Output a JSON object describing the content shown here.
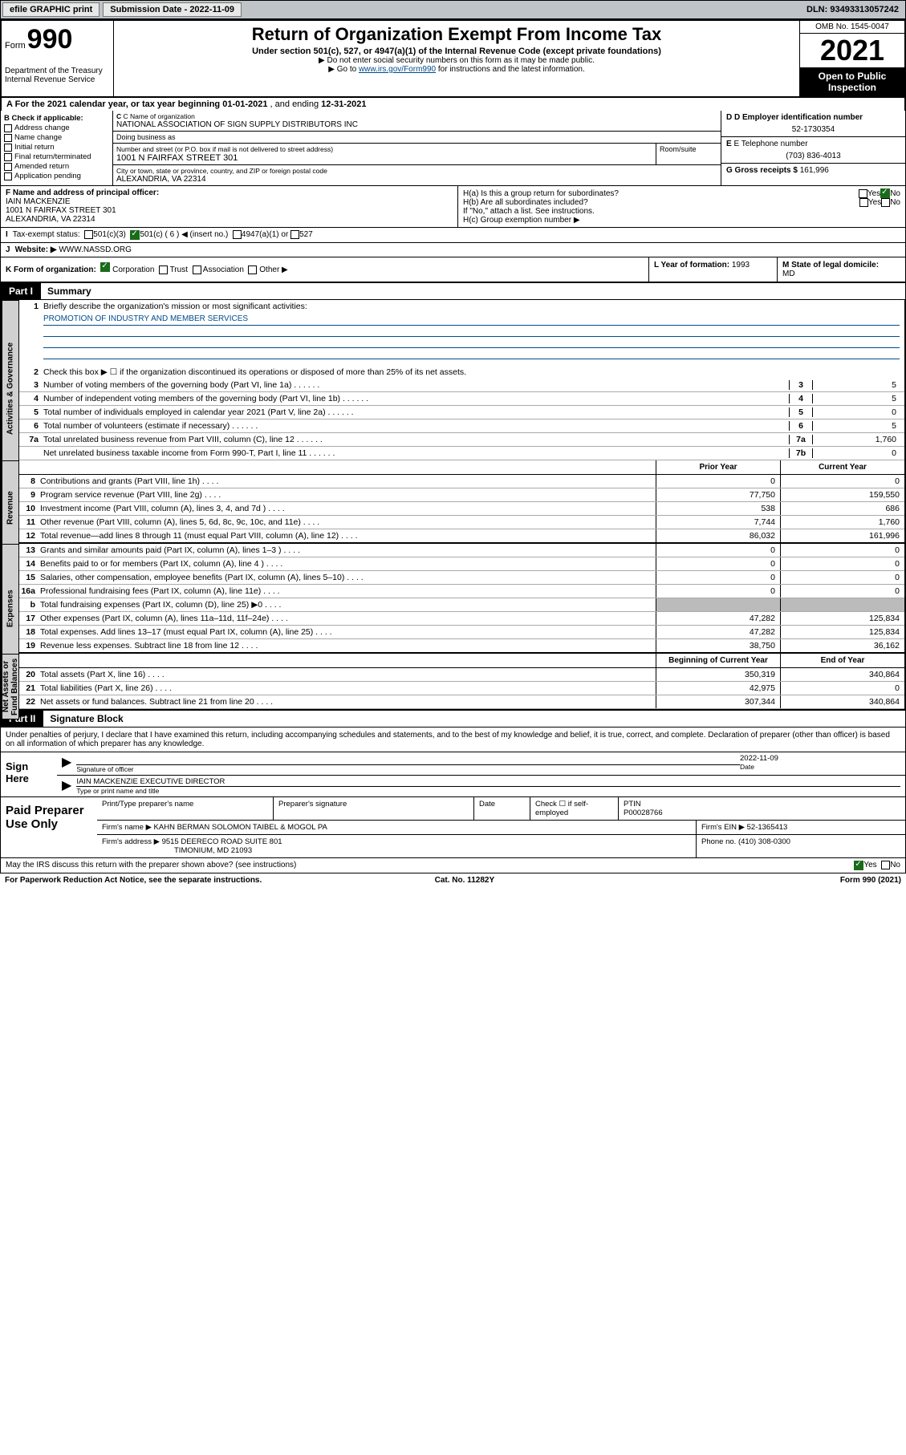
{
  "topbar": {
    "efile": "efile GRAPHIC print",
    "submission_label": "Submission Date - 2022-11-09",
    "dln": "DLN: 93493313057242"
  },
  "header": {
    "form_word": "Form",
    "form_number": "990",
    "dept": "Department of the Treasury",
    "irs": "Internal Revenue Service",
    "title": "Return of Organization Exempt From Income Tax",
    "sub": "Under section 501(c), 527, or 4947(a)(1) of the Internal Revenue Code (except private foundations)",
    "note1": "▶ Do not enter social security numbers on this form as it may be made public.",
    "note2_pre": "▶ Go to ",
    "note2_link": "www.irs.gov/Form990",
    "note2_post": " for instructions and the latest information.",
    "omb": "OMB No. 1545-0047",
    "year": "2021",
    "open": "Open to Public Inspection"
  },
  "taxyear": {
    "text_pre": "A For the 2021 calendar year, or tax year beginning ",
    "begin": "01-01-2021",
    "mid": " , and ending ",
    "end": "12-31-2021"
  },
  "colB": {
    "label": "B Check if applicable:",
    "items": [
      "Address change",
      "Name change",
      "Initial return",
      "Final return/terminated",
      "Amended return",
      "Application pending"
    ]
  },
  "colC": {
    "name_lab": "C Name of organization",
    "name": "NATIONAL ASSOCIATION OF SIGN SUPPLY DISTRIBUTORS INC",
    "dba_lab": "Doing business as",
    "addr_lab": "Number and street (or P.O. box if mail is not delivered to street address)",
    "room_lab": "Room/suite",
    "addr": "1001 N FAIRFAX STREET 301",
    "city_lab": "City or town, state or province, country, and ZIP or foreign postal code",
    "city": "ALEXANDRIA, VA  22314"
  },
  "colD": {
    "ein_lab": "D Employer identification number",
    "ein": "52-1730354",
    "tel_lab": "E Telephone number",
    "tel": "(703) 836-4013",
    "gross_lab": "G Gross receipts $",
    "gross": "161,996"
  },
  "rowF": {
    "lab": "F Name and address of principal officer:",
    "name": "IAIN MACKENZIE",
    "addr1": "1001 N FAIRFAX STREET 301",
    "addr2": "ALEXANDRIA, VA  22314"
  },
  "rowH": {
    "ha": "H(a) Is this a group return for subordinates?",
    "hb": "H(b) Are all subordinates included?",
    "hb_note": "If \"No,\" attach a list. See instructions.",
    "hc": "H(c) Group exemption number ▶",
    "yes": "Yes",
    "no": "No"
  },
  "rowI": {
    "lab": "I",
    "txt": "Tax-exempt status:",
    "o1": "501(c)(3)",
    "o2": "501(c) ( 6 ) ◀ (insert no.)",
    "o3": "4947(a)(1) or",
    "o4": "527"
  },
  "rowJ": {
    "lab": "J",
    "txt": "Website: ▶",
    "val": "WWW.NASSD.ORG"
  },
  "rowK": {
    "lab": "K Form of organization:",
    "o1": "Corporation",
    "o2": "Trust",
    "o3": "Association",
    "o4": "Other ▶",
    "L_lab": "L Year of formation:",
    "L_val": "1993",
    "M_lab": "M State of legal domicile:",
    "M_val": "MD"
  },
  "part1": {
    "label": "Part I",
    "title": "Summary"
  },
  "part2": {
    "label": "Part II",
    "title": "Signature Block"
  },
  "tabs": {
    "gov": "Activities & Governance",
    "rev": "Revenue",
    "exp": "Expenses",
    "net": "Net Assets or Fund Balances"
  },
  "gov": {
    "l1": "Briefly describe the organization's mission or most significant activities:",
    "mission": "PROMOTION OF INDUSTRY AND MEMBER SERVICES",
    "l2": "Check this box ▶ ☐ if the organization discontinued its operations or disposed of more than 25% of its net assets.",
    "rows": [
      {
        "n": "3",
        "t": "Number of voting members of the governing body (Part VI, line 1a)",
        "idx": "3",
        "v": "5"
      },
      {
        "n": "4",
        "t": "Number of independent voting members of the governing body (Part VI, line 1b)",
        "idx": "4",
        "v": "5"
      },
      {
        "n": "5",
        "t": "Total number of individuals employed in calendar year 2021 (Part V, line 2a)",
        "idx": "5",
        "v": "0"
      },
      {
        "n": "6",
        "t": "Total number of volunteers (estimate if necessary)",
        "idx": "6",
        "v": "5"
      },
      {
        "n": "7a",
        "t": "Total unrelated business revenue from Part VIII, column (C), line 12",
        "idx": "7a",
        "v": "1,760"
      },
      {
        "n": "",
        "t": "Net unrelated business taxable income from Form 990-T, Part I, line 11",
        "idx": "7b",
        "v": "0"
      }
    ]
  },
  "cols": {
    "prior": "Prior Year",
    "current": "Current Year",
    "begin": "Beginning of Current Year",
    "end": "End of Year"
  },
  "rev": [
    {
      "n": "8",
      "t": "Contributions and grants (Part VIII, line 1h)",
      "p": "0",
      "c": "0"
    },
    {
      "n": "9",
      "t": "Program service revenue (Part VIII, line 2g)",
      "p": "77,750",
      "c": "159,550"
    },
    {
      "n": "10",
      "t": "Investment income (Part VIII, column (A), lines 3, 4, and 7d )",
      "p": "538",
      "c": "686"
    },
    {
      "n": "11",
      "t": "Other revenue (Part VIII, column (A), lines 5, 6d, 8c, 9c, 10c, and 11e)",
      "p": "7,744",
      "c": "1,760"
    },
    {
      "n": "12",
      "t": "Total revenue—add lines 8 through 11 (must equal Part VIII, column (A), line 12)",
      "p": "86,032",
      "c": "161,996"
    }
  ],
  "exp": [
    {
      "n": "13",
      "t": "Grants and similar amounts paid (Part IX, column (A), lines 1–3 )",
      "p": "0",
      "c": "0"
    },
    {
      "n": "14",
      "t": "Benefits paid to or for members (Part IX, column (A), line 4 )",
      "p": "0",
      "c": "0"
    },
    {
      "n": "15",
      "t": "Salaries, other compensation, employee benefits (Part IX, column (A), lines 5–10)",
      "p": "0",
      "c": "0"
    },
    {
      "n": "16a",
      "t": "Professional fundraising fees (Part IX, column (A), line 11e)",
      "p": "0",
      "c": "0"
    },
    {
      "n": "b",
      "t": "Total fundraising expenses (Part IX, column (D), line 25) ▶0",
      "p": "",
      "c": "",
      "shaded": true
    },
    {
      "n": "17",
      "t": "Other expenses (Part IX, column (A), lines 11a–11d, 11f–24e)",
      "p": "47,282",
      "c": "125,834"
    },
    {
      "n": "18",
      "t": "Total expenses. Add lines 13–17 (must equal Part IX, column (A), line 25)",
      "p": "47,282",
      "c": "125,834"
    },
    {
      "n": "19",
      "t": "Revenue less expenses. Subtract line 18 from line 12",
      "p": "38,750",
      "c": "36,162"
    }
  ],
  "net": [
    {
      "n": "20",
      "t": "Total assets (Part X, line 16)",
      "p": "350,319",
      "c": "340,864"
    },
    {
      "n": "21",
      "t": "Total liabilities (Part X, line 26)",
      "p": "42,975",
      "c": "0"
    },
    {
      "n": "22",
      "t": "Net assets or fund balances. Subtract line 21 from line 20",
      "p": "307,344",
      "c": "340,864"
    }
  ],
  "sig": {
    "decl": "Under penalties of perjury, I declare that I have examined this return, including accompanying schedules and statements, and to the best of my knowledge and belief, it is true, correct, and complete. Declaration of preparer (other than officer) is based on all information of which preparer has any knowledge.",
    "sign_here": "Sign Here",
    "sig_officer": "Signature of officer",
    "date_lab": "Date",
    "date_val": "2022-11-09",
    "name_title": "IAIN MACKENZIE  EXECUTIVE DIRECTOR",
    "name_lab": "Type or print name and title"
  },
  "prep": {
    "label": "Paid Preparer Use Only",
    "h1": "Print/Type preparer's name",
    "h2": "Preparer's signature",
    "h3": "Date",
    "h4_pre": "Check ☐ if self-employed",
    "ptin_lab": "PTIN",
    "ptin": "P00028766",
    "firm_name_lab": "Firm's name ▶",
    "firm_name": "KAHN BERMAN SOLOMON TAIBEL & MOGOL PA",
    "firm_ein_lab": "Firm's EIN ▶",
    "firm_ein": "52-1365413",
    "firm_addr_lab": "Firm's address ▶",
    "firm_addr1": "9515 DEERECO ROAD SUITE 801",
    "firm_addr2": "TIMONIUM, MD  21093",
    "phone_lab": "Phone no.",
    "phone": "(410) 308-0300"
  },
  "footer": {
    "q": "May the IRS discuss this return with the preparer shown above? (see instructions)",
    "yes": "Yes",
    "no": "No",
    "pra": "For Paperwork Reduction Act Notice, see the separate instructions.",
    "cat": "Cat. No. 11282Y",
    "form": "Form 990 (2021)"
  }
}
